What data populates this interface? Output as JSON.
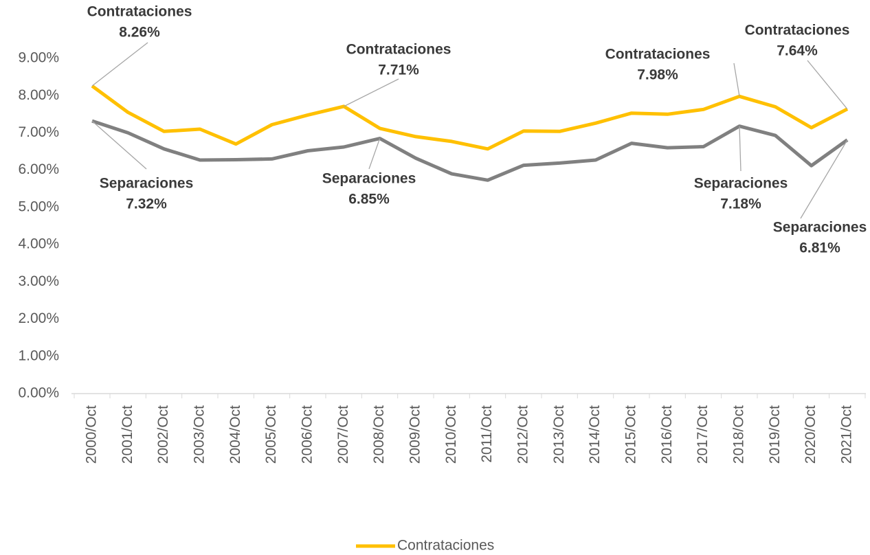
{
  "chart_data": {
    "type": "line",
    "categories": [
      "2000/Oct",
      "2001/Oct",
      "2002/Oct",
      "2003/Oct",
      "2004/Oct",
      "2005/Oct",
      "2006/Oct",
      "2007/Oct",
      "2008/Oct",
      "2009/Oct",
      "2010/Oct",
      "2011/Oct",
      "2012/Oct",
      "2013/Oct",
      "2014/Oct",
      "2015/Oct",
      "2016/Oct",
      "2017/Oct",
      "2018/Oct",
      "2019/Oct",
      "2020/Oct",
      "2021/Oct"
    ],
    "series": [
      {
        "name": "Contrataciones",
        "color": "#ffc000",
        "in_legend": true,
        "values": [
          8.26,
          7.55,
          7.04,
          7.1,
          6.7,
          7.22,
          7.48,
          7.71,
          7.12,
          6.9,
          6.77,
          6.57,
          7.05,
          7.04,
          7.26,
          7.53,
          7.5,
          7.63,
          7.98,
          7.7,
          7.14,
          7.64
        ],
        "value_labels": [
          "8.26%",
          null,
          null,
          null,
          null,
          null,
          null,
          "7.71%",
          null,
          null,
          null,
          null,
          null,
          null,
          null,
          null,
          null,
          null,
          "7.98%",
          null,
          null,
          "7.64%"
        ]
      },
      {
        "name": "Separaciones",
        "color": "#808080",
        "in_legend": false,
        "values": [
          7.32,
          7.0,
          6.57,
          6.27,
          6.28,
          6.3,
          6.52,
          6.62,
          6.85,
          6.32,
          5.9,
          5.73,
          6.13,
          6.19,
          6.27,
          6.72,
          6.6,
          6.63,
          7.18,
          6.93,
          6.12,
          6.81
        ],
        "value_labels": [
          "7.32%",
          null,
          null,
          null,
          null,
          null,
          null,
          null,
          "6.85%",
          null,
          null,
          null,
          null,
          null,
          null,
          null,
          null,
          null,
          "7.18%",
          null,
          null,
          "6.81%"
        ]
      }
    ],
    "ylim": [
      0,
      9
    ],
    "yticks": [
      {
        "value": 0,
        "label": "0.00%"
      },
      {
        "value": 1,
        "label": "1.00%"
      },
      {
        "value": 2,
        "label": "2.00%"
      },
      {
        "value": 3,
        "label": "3.00%"
      },
      {
        "value": 4,
        "label": "4.00%"
      },
      {
        "value": 5,
        "label": "5.00%"
      },
      {
        "value": 6,
        "label": "6.00%"
      },
      {
        "value": 7,
        "label": "7.00%"
      },
      {
        "value": 8,
        "label": "8.00%"
      },
      {
        "value": 9,
        "label": "9.00%"
      }
    ],
    "grid": false
  }
}
